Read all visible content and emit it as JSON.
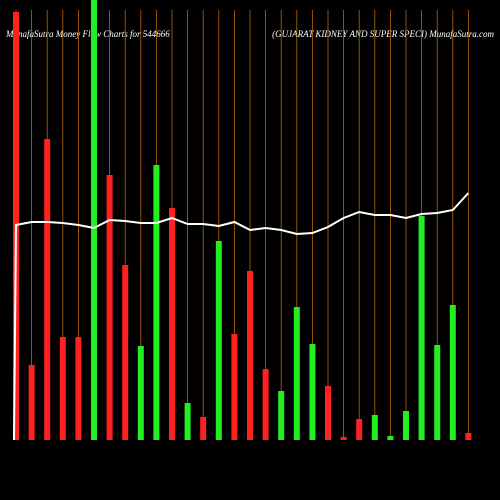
{
  "chart_data": {
    "type": "bar",
    "title": "MunafaSutra  Money Flow  Charts for 544666",
    "subtitle": "(GUJARAT KIDNEY AND SUPER SPECI) MunafaSutra.com",
    "categories": [
      null,
      null,
      null,
      null,
      null,
      null,
      null,
      null,
      null,
      null,
      null,
      null,
      null,
      null,
      null,
      null,
      null,
      null,
      null,
      null,
      null,
      null,
      null,
      null,
      null,
      null,
      null,
      null,
      null,
      null
    ],
    "series": [
      {
        "values": [
          428,
          75,
          301,
          103,
          103,
          440,
          265,
          175,
          94,
          275,
          232,
          37,
          23,
          199,
          106,
          169,
          71,
          49,
          133,
          96,
          54,
          3,
          21,
          25,
          4,
          29,
          224,
          95,
          135,
          7
        ],
        "colors": [
          "#ff2020",
          "#ff2020",
          "#ff2020",
          "#ff2020",
          "#ff2020",
          "#22ee22",
          "#ff2020",
          "#ff2020",
          "#22ee22",
          "#22ee22",
          "#ff2020",
          "#22ee22",
          "#ff2020",
          "#22ee22",
          "#ff2020",
          "#ff2020",
          "#ff2020",
          "#22ee22",
          "#22ee22",
          "#22ee22",
          "#ff2020",
          "#ff2020",
          "#ff2020",
          "#22ee22",
          "#22ee22",
          "#22ee22",
          "#22ee22",
          "#22ee22",
          "#22ee22",
          "#ff2020"
        ]
      },
      {
        "type": "line",
        "color": "#ffffff",
        "values": [
          215,
          218,
          218,
          217,
          215,
          212,
          220,
          219,
          217,
          217,
          222,
          216,
          216,
          214,
          218,
          210,
          212,
          210,
          206,
          207,
          213,
          222,
          228,
          225,
          225,
          222,
          226,
          227,
          230,
          247
        ]
      }
    ],
    "ylim": [
      0,
      440
    ],
    "grid_color": "#b8650a",
    "background": "#000000"
  }
}
